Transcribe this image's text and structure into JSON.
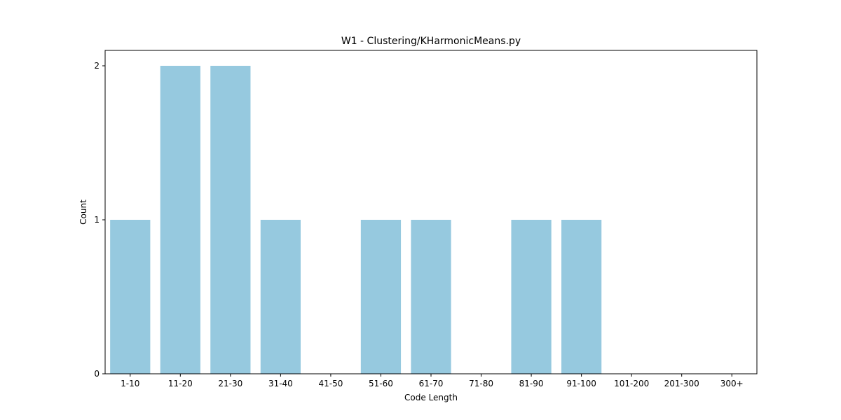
{
  "chart_data": {
    "type": "bar",
    "title": "W1 - Clustering/KHarmonicMeans.py",
    "xlabel": "Code Length",
    "ylabel": "Count",
    "categories": [
      "1-10",
      "11-20",
      "21-30",
      "31-40",
      "41-50",
      "51-60",
      "61-70",
      "71-80",
      "81-90",
      "91-100",
      "101-200",
      "201-300",
      "300+"
    ],
    "values": [
      1,
      2,
      2,
      1,
      0,
      1,
      1,
      0,
      1,
      1,
      0,
      0,
      0
    ],
    "ylim": [
      0,
      2.1
    ],
    "yticks": [
      0,
      1,
      2
    ],
    "bar_color": "#96c9df",
    "grid": false,
    "legend": "none"
  }
}
